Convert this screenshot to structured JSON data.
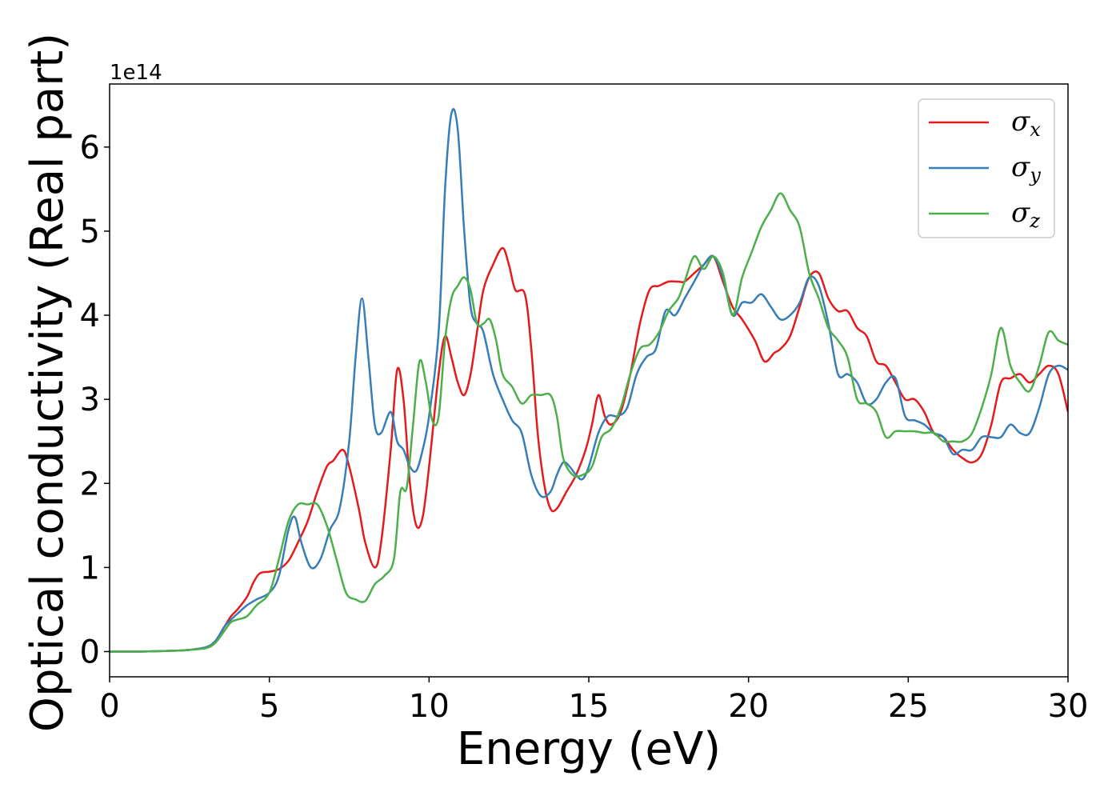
{
  "chart_data": {
    "type": "line",
    "title": "",
    "xlabel": "Energy (eV)",
    "ylabel": "Optical conductivity (Real part)",
    "y_offset_text": "1e14",
    "xlim": [
      0,
      30
    ],
    "ylim": [
      -0.3,
      6.75
    ],
    "xticks": [
      0,
      5,
      10,
      15,
      20,
      25,
      30
    ],
    "xtick_labels": [
      "0",
      "5",
      "10",
      "15",
      "20",
      "25",
      "30"
    ],
    "yticks": [
      0,
      1,
      2,
      3,
      4,
      5,
      6
    ],
    "ytick_labels": [
      "0",
      "1",
      "2",
      "3",
      "4",
      "5",
      "6"
    ],
    "grid": false,
    "legend_position": "top-right",
    "series": [
      {
        "name": "σx",
        "legend_base": "σ",
        "legend_sub": "x",
        "color": "#e41a1c",
        "x": [
          0,
          1,
          2,
          2.5,
          3,
          3.3,
          3.6,
          3.8,
          4,
          4.3,
          4.5,
          4.7,
          5,
          5.3,
          5.6,
          5.9,
          6.2,
          6.5,
          6.8,
          7.0,
          7.3,
          7.5,
          7.8,
          8.0,
          8.3,
          8.5,
          8.8,
          9.0,
          9.2,
          9.4,
          9.6,
          9.8,
          10.0,
          10.3,
          10.5,
          10.7,
          10.9,
          11.1,
          11.3,
          11.5,
          11.7,
          12.0,
          12.3,
          12.5,
          12.7,
          13.0,
          13.2,
          13.4,
          13.6,
          13.8,
          14.0,
          14.3,
          14.6,
          14.9,
          15.1,
          15.3,
          15.5,
          15.7,
          16.0,
          16.3,
          16.6,
          16.9,
          17.2,
          17.5,
          17.8,
          18.0,
          18.3,
          18.6,
          18.9,
          19.2,
          19.5,
          19.8,
          20.2,
          20.5,
          20.8,
          21.0,
          21.3,
          21.6,
          21.9,
          22.2,
          22.5,
          22.8,
          23.1,
          23.4,
          23.7,
          24.0,
          24.3,
          24.6,
          24.9,
          25.2,
          25.5,
          25.8,
          26.1,
          26.4,
          26.7,
          27.0,
          27.3,
          27.6,
          27.9,
          28.2,
          28.5,
          28.8,
          29.1,
          29.4,
          29.7,
          30.0
        ],
        "y": [
          0,
          0,
          0.01,
          0.02,
          0.05,
          0.12,
          0.3,
          0.42,
          0.5,
          0.65,
          0.82,
          0.93,
          0.95,
          0.98,
          1.08,
          1.3,
          1.55,
          1.9,
          2.2,
          2.27,
          2.4,
          2.2,
          1.7,
          1.3,
          1.0,
          1.3,
          2.4,
          3.35,
          3.0,
          2.0,
          1.5,
          1.6,
          2.2,
          3.3,
          3.75,
          3.5,
          3.2,
          3.05,
          3.3,
          3.8,
          4.3,
          4.6,
          4.8,
          4.6,
          4.3,
          4.25,
          3.6,
          2.6,
          2.0,
          1.7,
          1.7,
          1.9,
          2.1,
          2.4,
          2.7,
          3.05,
          2.8,
          2.7,
          2.85,
          3.3,
          3.9,
          4.3,
          4.35,
          4.4,
          4.4,
          4.4,
          4.5,
          4.6,
          4.7,
          4.4,
          4.1,
          3.95,
          3.7,
          3.45,
          3.55,
          3.6,
          3.75,
          4.1,
          4.45,
          4.5,
          4.2,
          4.05,
          4.05,
          3.85,
          3.75,
          3.45,
          3.4,
          3.2,
          3.0,
          3.0,
          2.85,
          2.6,
          2.55,
          2.4,
          2.3,
          2.25,
          2.35,
          2.7,
          3.2,
          3.25,
          3.3,
          3.2,
          3.3,
          3.4,
          3.3,
          2.85
        ]
      },
      {
        "name": "σy",
        "legend_base": "σ",
        "legend_sub": "y",
        "color": "#377eb8",
        "x": [
          0,
          1,
          2,
          2.5,
          3,
          3.3,
          3.6,
          3.8,
          4,
          4.3,
          4.6,
          5.0,
          5.3,
          5.6,
          5.8,
          6.0,
          6.3,
          6.6,
          6.9,
          7.2,
          7.5,
          7.7,
          7.9,
          8.1,
          8.3,
          8.5,
          8.8,
          9.0,
          9.2,
          9.4,
          9.6,
          9.8,
          10.0,
          10.3,
          10.5,
          10.7,
          10.9,
          11.1,
          11.3,
          11.5,
          11.7,
          12.0,
          12.3,
          12.6,
          12.9,
          13.2,
          13.5,
          13.8,
          14.0,
          14.2,
          14.4,
          14.6,
          14.8,
          15.0,
          15.3,
          15.6,
          15.9,
          16.2,
          16.5,
          16.8,
          17.1,
          17.4,
          17.7,
          18.0,
          18.3,
          18.6,
          18.9,
          19.2,
          19.5,
          19.8,
          20.1,
          20.4,
          20.7,
          21.0,
          21.3,
          21.6,
          21.9,
          22.2,
          22.5,
          22.8,
          23.1,
          23.4,
          23.7,
          24.0,
          24.3,
          24.6,
          24.9,
          25.2,
          25.5,
          25.8,
          26.1,
          26.4,
          26.7,
          27.0,
          27.3,
          27.6,
          27.9,
          28.2,
          28.5,
          28.8,
          29.1,
          29.4,
          29.7,
          30.0
        ],
        "y": [
          0,
          0,
          0.01,
          0.02,
          0.05,
          0.12,
          0.3,
          0.38,
          0.45,
          0.55,
          0.62,
          0.7,
          0.9,
          1.45,
          1.6,
          1.3,
          1.0,
          1.1,
          1.45,
          1.7,
          2.5,
          3.5,
          4.2,
          3.5,
          2.7,
          2.6,
          2.85,
          2.5,
          2.4,
          2.2,
          2.15,
          2.4,
          2.8,
          3.8,
          5.5,
          6.4,
          6.2,
          5.0,
          4.1,
          3.9,
          3.8,
          3.3,
          3.0,
          2.75,
          2.6,
          2.1,
          1.85,
          1.9,
          2.1,
          2.25,
          2.2,
          2.1,
          2.05,
          2.2,
          2.6,
          2.8,
          2.8,
          2.9,
          3.3,
          3.5,
          3.6,
          4.05,
          4.0,
          4.2,
          4.4,
          4.6,
          4.7,
          4.45,
          4.0,
          4.15,
          4.15,
          4.25,
          4.1,
          3.95,
          4.0,
          4.15,
          4.45,
          4.35,
          3.9,
          3.3,
          3.3,
          3.2,
          2.95,
          3.0,
          3.2,
          3.25,
          2.8,
          2.75,
          2.7,
          2.6,
          2.55,
          2.35,
          2.4,
          2.4,
          2.55,
          2.55,
          2.55,
          2.7,
          2.6,
          2.6,
          2.9,
          3.3,
          3.4,
          3.35
        ],
        "legend_note": ""
      },
      {
        "name": "σz",
        "legend_base": "σ",
        "legend_sub": "z",
        "color": "#4daf4a",
        "x": [
          0,
          1,
          2,
          2.5,
          3,
          3.3,
          3.6,
          3.8,
          4,
          4.3,
          4.6,
          5.0,
          5.3,
          5.6,
          5.9,
          6.2,
          6.5,
          6.8,
          7.1,
          7.4,
          7.7,
          8.0,
          8.3,
          8.6,
          8.9,
          9.1,
          9.3,
          9.5,
          9.7,
          9.9,
          10.1,
          10.3,
          10.5,
          10.7,
          10.9,
          11.1,
          11.3,
          11.5,
          11.7,
          11.9,
          12.1,
          12.3,
          12.6,
          12.9,
          13.2,
          13.5,
          13.8,
          14.0,
          14.2,
          14.5,
          14.8,
          15.1,
          15.4,
          15.7,
          16.0,
          16.3,
          16.6,
          16.9,
          17.2,
          17.5,
          17.8,
          18.0,
          18.3,
          18.6,
          18.9,
          19.2,
          19.5,
          19.8,
          20.1,
          20.4,
          20.7,
          21.0,
          21.3,
          21.6,
          21.9,
          22.2,
          22.5,
          22.8,
          23.1,
          23.4,
          23.7,
          24.0,
          24.3,
          24.6,
          24.9,
          25.2,
          25.5,
          25.8,
          26.1,
          26.4,
          26.7,
          27.0,
          27.3,
          27.6,
          27.9,
          28.2,
          28.5,
          28.8,
          29.1,
          29.4,
          29.7,
          30.0
        ],
        "y": [
          0,
          0,
          0.01,
          0.02,
          0.04,
          0.1,
          0.25,
          0.35,
          0.38,
          0.42,
          0.55,
          0.7,
          1.1,
          1.55,
          1.75,
          1.75,
          1.75,
          1.5,
          1.1,
          0.7,
          0.62,
          0.6,
          0.8,
          0.9,
          1.1,
          1.9,
          1.95,
          2.7,
          3.45,
          3.2,
          2.75,
          2.8,
          3.7,
          4.2,
          4.35,
          4.45,
          4.3,
          3.9,
          3.9,
          3.95,
          3.7,
          3.3,
          3.15,
          2.95,
          3.05,
          3.05,
          3.05,
          2.8,
          2.3,
          2.1,
          2.1,
          2.2,
          2.55,
          2.65,
          2.9,
          3.3,
          3.6,
          3.65,
          3.8,
          4.05,
          4.2,
          4.4,
          4.7,
          4.55,
          4.7,
          4.5,
          4.0,
          4.45,
          4.75,
          5.05,
          5.25,
          5.45,
          5.25,
          5.05,
          4.5,
          4.2,
          3.85,
          3.7,
          3.5,
          3.0,
          2.95,
          2.85,
          2.55,
          2.62,
          2.62,
          2.62,
          2.6,
          2.6,
          2.5,
          2.5,
          2.5,
          2.6,
          2.9,
          3.3,
          3.85,
          3.4,
          3.2,
          3.1,
          3.4,
          3.8,
          3.7,
          3.65
        ]
      }
    ]
  }
}
